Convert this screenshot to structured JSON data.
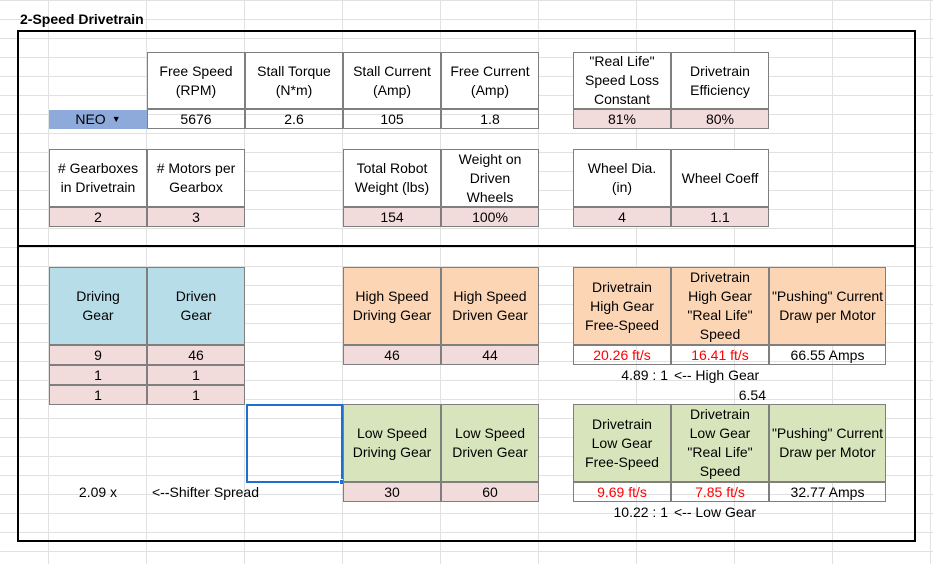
{
  "title": "2-Speed Drivetrain",
  "motor_table": {
    "motor_select": "NEO",
    "headers": [
      "Free Speed\n(RPM)",
      "Stall Torque\n(N*m)",
      "Stall Current\n(Amp)",
      "Free Current\n(Amp)"
    ],
    "values": [
      "5676",
      "2.6",
      "105",
      "1.8"
    ]
  },
  "loss_table": {
    "headers": [
      "\"Real Life\"\nSpeed Loss\nConstant",
      "Drivetrain\nEfficiency"
    ],
    "values": [
      "81%",
      "80%"
    ]
  },
  "gearbox_table": {
    "headers": [
      "# Gearboxes\nin Drivetrain",
      "# Motors per\nGearbox"
    ],
    "values": [
      "2",
      "3"
    ]
  },
  "weight_table": {
    "headers": [
      "Total Robot\nWeight (lbs)",
      "Weight on\nDriven\nWheels"
    ],
    "values": [
      "154",
      "100%"
    ]
  },
  "wheel_table": {
    "headers": [
      "Wheel Dia.\n(in)",
      "Wheel Coeff"
    ],
    "values": [
      "4",
      "1.1"
    ]
  },
  "gear_stages": {
    "headers": [
      "Driving\nGear",
      "Driven\nGear"
    ],
    "rows": [
      [
        "9",
        "46"
      ],
      [
        "1",
        "1"
      ],
      [
        "1",
        "1"
      ]
    ]
  },
  "high_gear": {
    "headers": [
      "High Speed\nDriving Gear",
      "High Speed\nDriven Gear"
    ],
    "values": [
      "46",
      "44"
    ],
    "result_headers": [
      "Drivetrain\nHigh Gear\nFree-Speed",
      "Drivetrain\nHigh Gear\n\"Real Life\"\nSpeed",
      "\"Pushing\" Current\nDraw per Motor"
    ],
    "results": [
      "20.26 ft/s",
      "16.41 ft/s",
      "66.55 Amps"
    ],
    "ratio": "4.89 : 1",
    "ratio_label": "<-- High Gear",
    "extra_value": "6.54"
  },
  "low_gear": {
    "headers": [
      "Low Speed\nDriving Gear",
      "Low Speed\nDriven Gear"
    ],
    "values": [
      "30",
      "60"
    ],
    "result_headers": [
      "Drivetrain\nLow Gear\nFree-Speed",
      "Drivetrain\nLow Gear\n\"Real Life\"\nSpeed",
      "\"Pushing\" Current\nDraw per Motor"
    ],
    "results": [
      "9.69 ft/s",
      "7.85 ft/s",
      "32.77 Amps"
    ],
    "ratio": "10.22 : 1",
    "ratio_label": "<-- Low Gear"
  },
  "shifter": {
    "spread_value": "2.09 x",
    "spread_label": "<--Shifter Spread"
  },
  "colors": {
    "input_pink": "#f2dcdb",
    "gear_blue": "#b7dde8",
    "high_orange": "#fcd5b4",
    "low_green": "#d8e4bc",
    "motor_select_blue": "#8eaadb",
    "result_red": "#ff0000",
    "selection_blue": "#1f6fd1"
  }
}
